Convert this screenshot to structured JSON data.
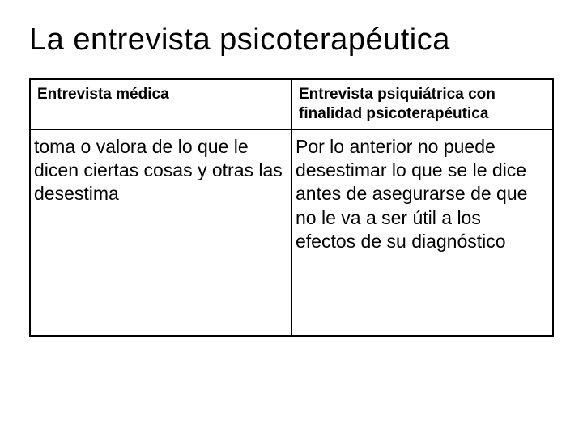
{
  "slide": {
    "title": "La entrevista psicoterapéutica",
    "table": {
      "type": "table",
      "border_color": "#000000",
      "background_color": "#ffffff",
      "text_color": "#000000",
      "header_fontsize": 19,
      "header_fontweight": "bold",
      "body_fontsize": 23,
      "body_fontweight": "normal",
      "columns": [
        {
          "key": "medica",
          "label": "Entrevista médica",
          "width_pct": 50,
          "align": "left"
        },
        {
          "key": "psiquiatrica",
          "label": "Entrevista psiquiátrica con finalidad psicoterapéutica",
          "width_pct": 50,
          "align": "left"
        }
      ],
      "rows": [
        {
          "medica": "toma o valora de lo que le dicen ciertas cosas y otras las desestima",
          "psiquiatrica": "Por lo anterior no puede desestimar lo que se le dice antes de asegurarse de que no le va a ser útil a los efectos de su diagnóstico"
        }
      ]
    }
  }
}
